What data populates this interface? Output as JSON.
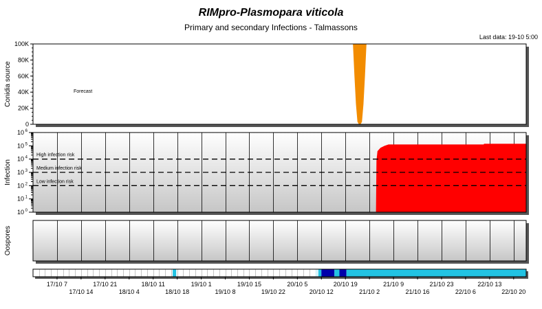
{
  "title": "RIMpro-Plasmopara viticola",
  "subtitle": "Primary and secondary Infections - Talmassons",
  "last_data": "Last data: 19-10 5:00",
  "chart_data": [
    {
      "type": "area",
      "ylabel": "Conidia source",
      "ylim": [
        0,
        100000
      ],
      "yticks": [
        {
          "v": 0,
          "label": "0"
        },
        {
          "v": 20000,
          "label": "20K"
        },
        {
          "v": 40000,
          "label": "40K"
        },
        {
          "v": 60000,
          "label": "60K"
        },
        {
          "v": 80000,
          "label": "80K"
        },
        {
          "v": 100000,
          "label": "100K"
        }
      ],
      "annotation": "Forecast",
      "color": "#f28c00",
      "series": [
        {
          "x": [
            63.9,
            64.2,
            64.5,
            64.8,
            65.1,
            65.4,
            65.7,
            66.0,
            66.3,
            66.6
          ],
          "values": [
            100000,
            60000,
            25000,
            3000,
            0,
            0,
            3000,
            25000,
            60000,
            100000
          ]
        }
      ]
    },
    {
      "type": "area",
      "ylabel": "Infection",
      "scale": "log",
      "ylim": [
        0,
        6
      ],
      "yticks": [
        {
          "v": 0,
          "label": "10 0"
        },
        {
          "v": 1,
          "label": "10 1"
        },
        {
          "v": 2,
          "label": "10 2"
        },
        {
          "v": 3,
          "label": "10 3"
        },
        {
          "v": 4,
          "label": "10 4"
        },
        {
          "v": 5,
          "label": "10 5"
        },
        {
          "v": 6,
          "label": "10 6"
        }
      ],
      "thresholds": [
        {
          "v": 4,
          "label": "High infection risk"
        },
        {
          "v": 3,
          "label": "Medium infection risk"
        },
        {
          "v": 2,
          "label": "Low infection risk"
        }
      ],
      "color": "#ff0000",
      "series": [
        {
          "x": [
            68.5,
            68.6,
            68.8,
            69.4,
            70.2,
            71.0,
            90.0,
            90.1,
            98.5
          ],
          "values": [
            0,
            3.9,
            4.6,
            4.85,
            5.0,
            5.1,
            5.1,
            5.15,
            5.15
          ]
        }
      ]
    },
    {
      "type": "area",
      "ylabel": "Oospores",
      "series": []
    }
  ],
  "timeline": {
    "bands": [
      {
        "start": 27.9,
        "end": 28.6,
        "color": "#22c3e3"
      },
      {
        "start": 56.4,
        "end": 57.0,
        "color": "#d8f2fa"
      },
      {
        "start": 57.0,
        "end": 57.6,
        "color": "#22c3e3"
      },
      {
        "start": 57.6,
        "end": 60.2,
        "color": "#0000aa"
      },
      {
        "start": 60.2,
        "end": 61.2,
        "color": "#22c3e3"
      },
      {
        "start": 61.2,
        "end": 62.6,
        "color": "#0000aa"
      },
      {
        "start": 62.6,
        "end": 98.5,
        "color": "#22c3e3"
      }
    ]
  },
  "x_axis": {
    "range": [
      0,
      98.5
    ],
    "grid_step": 4.8,
    "ticks": [
      {
        "x": 4.8,
        "label": "17/10 7"
      },
      {
        "x": 9.6,
        "label": "17/10 14"
      },
      {
        "x": 14.4,
        "label": "17/10 21"
      },
      {
        "x": 19.2,
        "label": "18/10 4"
      },
      {
        "x": 24.0,
        "label": "18/10 11"
      },
      {
        "x": 28.8,
        "label": "18/10 18"
      },
      {
        "x": 33.6,
        "label": "19/10 1"
      },
      {
        "x": 38.4,
        "label": "19/10 8"
      },
      {
        "x": 43.2,
        "label": "19/10 15"
      },
      {
        "x": 48.0,
        "label": "19/10 22"
      },
      {
        "x": 52.8,
        "label": "20/10 5"
      },
      {
        "x": 57.6,
        "label": "20/10 12"
      },
      {
        "x": 62.4,
        "label": "20/10 19"
      },
      {
        "x": 67.2,
        "label": "21/10 2"
      },
      {
        "x": 72.0,
        "label": "21/10 9"
      },
      {
        "x": 76.8,
        "label": "21/10 16"
      },
      {
        "x": 81.6,
        "label": "21/10 23"
      },
      {
        "x": 86.4,
        "label": "22/10 6"
      },
      {
        "x": 91.2,
        "label": "22/10 13"
      },
      {
        "x": 96.0,
        "label": "22/10 20"
      }
    ]
  }
}
